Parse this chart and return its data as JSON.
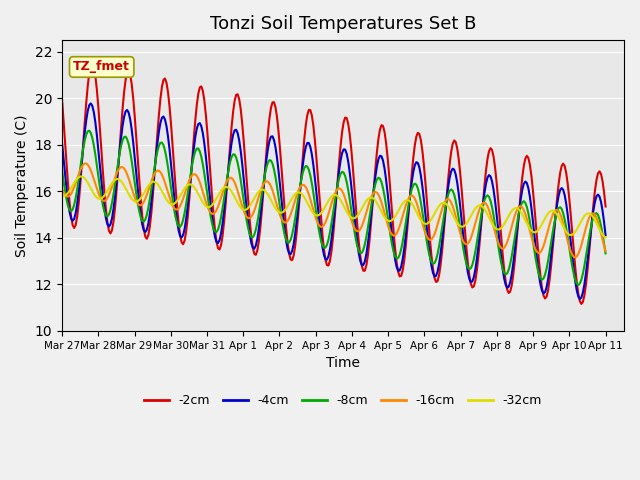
{
  "title": "Tonzi Soil Temperatures Set B",
  "xlabel": "Time",
  "ylabel": "Soil Temperature (C)",
  "ylim": [
    10,
    22.5
  ],
  "xlim_days": [
    0,
    15.5
  ],
  "background_color": "#e8e8e8",
  "plot_bg": "#e8e8e8",
  "legend_label": "TZ_fmet",
  "series": {
    "-2cm": {
      "color": "#dd0000",
      "lw": 1.5
    },
    "-4cm": {
      "color": "#0000cc",
      "lw": 1.5
    },
    "-8cm": {
      "color": "#00aa00",
      "lw": 1.5
    },
    "-16cm": {
      "color": "#ff8800",
      "lw": 1.5
    },
    "-32cm": {
      "color": "#dddd00",
      "lw": 1.5
    }
  },
  "xtick_labels": [
    "Mar 27",
    "Mar 28",
    "Mar 29",
    "Mar 30",
    "Mar 31",
    "Apr 1",
    "Apr 2",
    "Apr 3",
    "Apr 4",
    "Apr 5",
    "Apr 6",
    "Apr 7",
    "Apr 8",
    "Apr 9",
    "Apr 10",
    "Apr 11"
  ],
  "ytick_values": [
    10,
    12,
    14,
    16,
    18,
    20,
    22
  ],
  "n_days": 15
}
